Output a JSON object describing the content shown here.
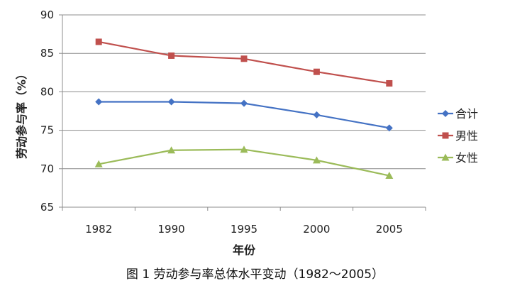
{
  "caption": "图 1   劳动参与率总体水平变动（1982～2005）",
  "chart_data": {
    "type": "line",
    "title": "",
    "xlabel": "年份",
    "ylabel": "劳动参与率（%）",
    "categories": [
      "1982",
      "1990",
      "1995",
      "2000",
      "2005"
    ],
    "ylim": [
      65,
      90
    ],
    "yticks": [
      65,
      70,
      75,
      80,
      85,
      90
    ],
    "grid": true,
    "legend_position": "right",
    "series": [
      {
        "name": "合计",
        "color": "#4472C4",
        "marker": "diamond",
        "values": [
          78.7,
          78.7,
          78.5,
          77.0,
          75.3
        ]
      },
      {
        "name": "男性",
        "color": "#C0504D",
        "marker": "square",
        "values": [
          86.5,
          84.7,
          84.3,
          82.6,
          81.1
        ]
      },
      {
        "name": "女性",
        "color": "#9BBB59",
        "marker": "triangle",
        "values": [
          70.6,
          72.4,
          72.5,
          71.1,
          69.1
        ]
      }
    ]
  }
}
